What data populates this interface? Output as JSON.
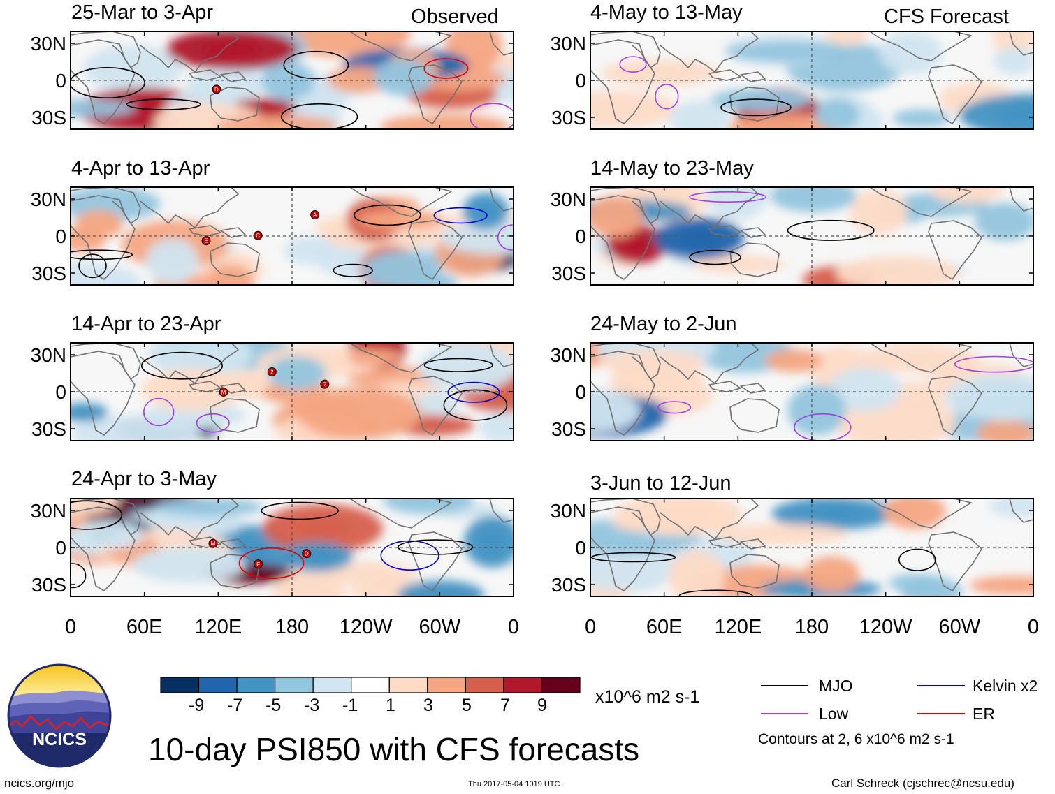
{
  "figure_title": "10-day PSI850 with CFS forecasts",
  "column_labels": {
    "observed": "Observed",
    "forecast": "CFS Forecast"
  },
  "lat_labels": [
    "30N",
    "0",
    "30S"
  ],
  "lon_labels": [
    "0",
    "60E",
    "120E",
    "180",
    "120W",
    "60W",
    "0"
  ],
  "observed_panels": [
    {
      "label": "25-Mar to 3-Apr",
      "storm_markers": [
        "D"
      ]
    },
    {
      "label": "4-Apr to 13-Apr",
      "storm_markers": [
        "E",
        "C",
        "A"
      ]
    },
    {
      "label": "14-Apr to 23-Apr",
      "storm_markers": [
        "M",
        "2",
        "?"
      ]
    },
    {
      "label": "24-Apr to 3-May",
      "storm_markers": [
        "M",
        "F",
        "D"
      ]
    }
  ],
  "forecast_panels": [
    {
      "label": "4-May to 13-May"
    },
    {
      "label": "14-May to 23-May"
    },
    {
      "label": "24-May to 2-Jun"
    },
    {
      "label": "3-Jun to 12-Jun"
    }
  ],
  "colorbar": {
    "ticks": [
      "-9",
      "-7",
      "-5",
      "-3",
      "-1",
      "1",
      "3",
      "5",
      "7",
      "9"
    ],
    "colors": [
      "#053061",
      "#2166ac",
      "#4393c3",
      "#92c5de",
      "#d1e5f0",
      "#ffffff",
      "#fddbc7",
      "#f4a582",
      "#d6604d",
      "#b2182b",
      "#67001f"
    ],
    "units": "x10^6 m2 s-1"
  },
  "legend": {
    "items": [
      {
        "label": "MJO",
        "color": "#000000"
      },
      {
        "label": "Kelvin x2",
        "color": "#0000dd"
      },
      {
        "label": "Low",
        "color": "#a040e0"
      },
      {
        "label": "ER",
        "color": "#e00000"
      }
    ],
    "note": "Contours at 2, 6 x10^6 m2 s-1"
  },
  "logo": {
    "text": "NCICS"
  },
  "footer": {
    "left": "ncics.org/mjo",
    "center": "Thu 2017-05-04 1019 UTC",
    "right": "Carl Schreck (cjschrec@ncsu.edu)"
  }
}
